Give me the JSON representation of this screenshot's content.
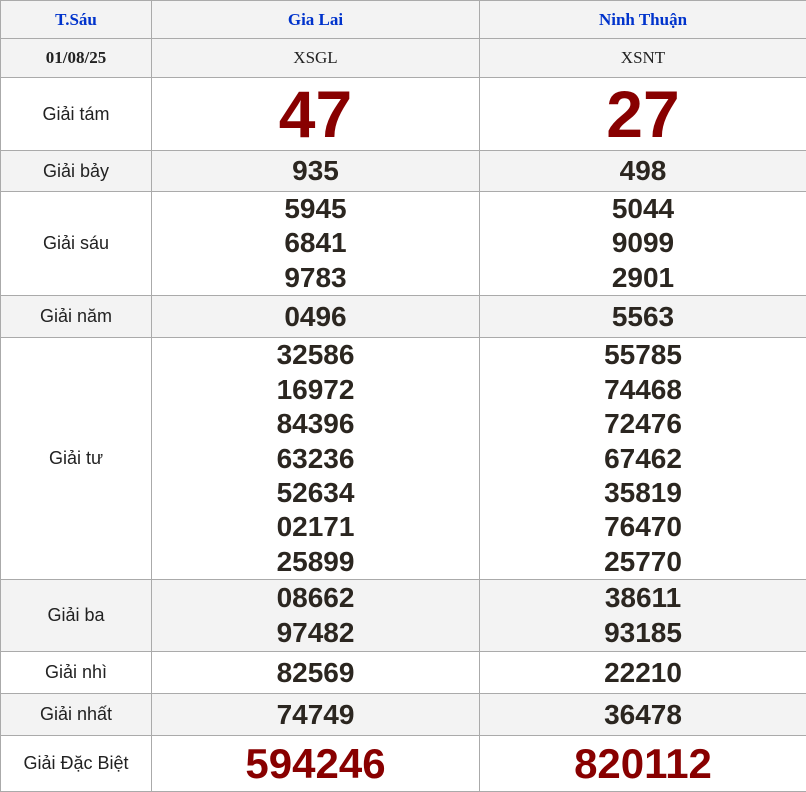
{
  "header": {
    "day": "T.Sáu",
    "provinces": [
      "Gia Lai",
      "Ninh Thuận"
    ]
  },
  "subheader": {
    "date": "01/08/25",
    "codes": [
      "XSGL",
      "XSNT"
    ]
  },
  "colors": {
    "header_text": "#0033cc",
    "highlight_number": "#880000",
    "number": "#2b2620",
    "alt_row": "#f3f3f3",
    "border": "#aaaaaa"
  },
  "prizes": [
    {
      "label": "Giải tám",
      "style": "big",
      "values": [
        [
          "47"
        ],
        [
          "27"
        ]
      ]
    },
    {
      "label": "Giải bảy",
      "style": "num",
      "values": [
        [
          "935"
        ],
        [
          "498"
        ]
      ]
    },
    {
      "label": "Giải sáu",
      "style": "num",
      "values": [
        [
          "5945",
          "6841",
          "9783"
        ],
        [
          "5044",
          "9099",
          "2901"
        ]
      ]
    },
    {
      "label": "Giải năm",
      "style": "num",
      "values": [
        [
          "0496"
        ],
        [
          "5563"
        ]
      ]
    },
    {
      "label": "Giải tư",
      "style": "num",
      "values": [
        [
          "32586",
          "16972",
          "84396",
          "63236",
          "52634",
          "02171",
          "25899"
        ],
        [
          "55785",
          "74468",
          "72476",
          "67462",
          "35819",
          "76470",
          "25770"
        ]
      ]
    },
    {
      "label": "Giải ba",
      "style": "num",
      "values": [
        [
          "08662",
          "97482"
        ],
        [
          "38611",
          "93185"
        ]
      ]
    },
    {
      "label": "Giải nhì",
      "style": "num",
      "values": [
        [
          "82569"
        ],
        [
          "22210"
        ]
      ]
    },
    {
      "label": "Giải nhất",
      "style": "num",
      "values": [
        [
          "74749"
        ],
        [
          "36478"
        ]
      ]
    },
    {
      "label": "Giải Đặc Biệt",
      "style": "sp",
      "values": [
        [
          "594246"
        ],
        [
          "820112"
        ]
      ]
    }
  ]
}
